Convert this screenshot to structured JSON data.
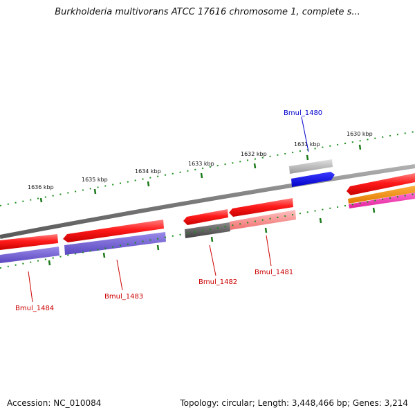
{
  "title": "Burkholderia multivorans ATCC 17616 chromosome 1, complete s...",
  "footer": {
    "accession": "Accession: NC_010084",
    "summary": "Topology: circular; Length: 3,448,466 bp; Genes: 3,214"
  },
  "ruler_labels": [
    "1630 kbp",
    "1631 kbp",
    "1632 kbp",
    "1633 kbp",
    "1634 kbp",
    "1635 kbp",
    "1636 kbp"
  ],
  "gene_labels": [
    {
      "text": "Bmul_1480",
      "color": "#0000cc"
    },
    {
      "text": "Bmul_1481",
      "color": "#cc0000"
    },
    {
      "text": "Bmul_1482",
      "color": "#cc0000"
    },
    {
      "text": "Bmul_1483",
      "color": "#cc0000"
    },
    {
      "text": "Bmul_1484",
      "color": "#cc0000"
    }
  ],
  "colors": {
    "backbone": "#888888",
    "forward_cds": "#0000ff",
    "reverse_cds": "#ee1111",
    "tick_major": "#1a7a1a",
    "tick_minor": "#1a8f1a"
  }
}
